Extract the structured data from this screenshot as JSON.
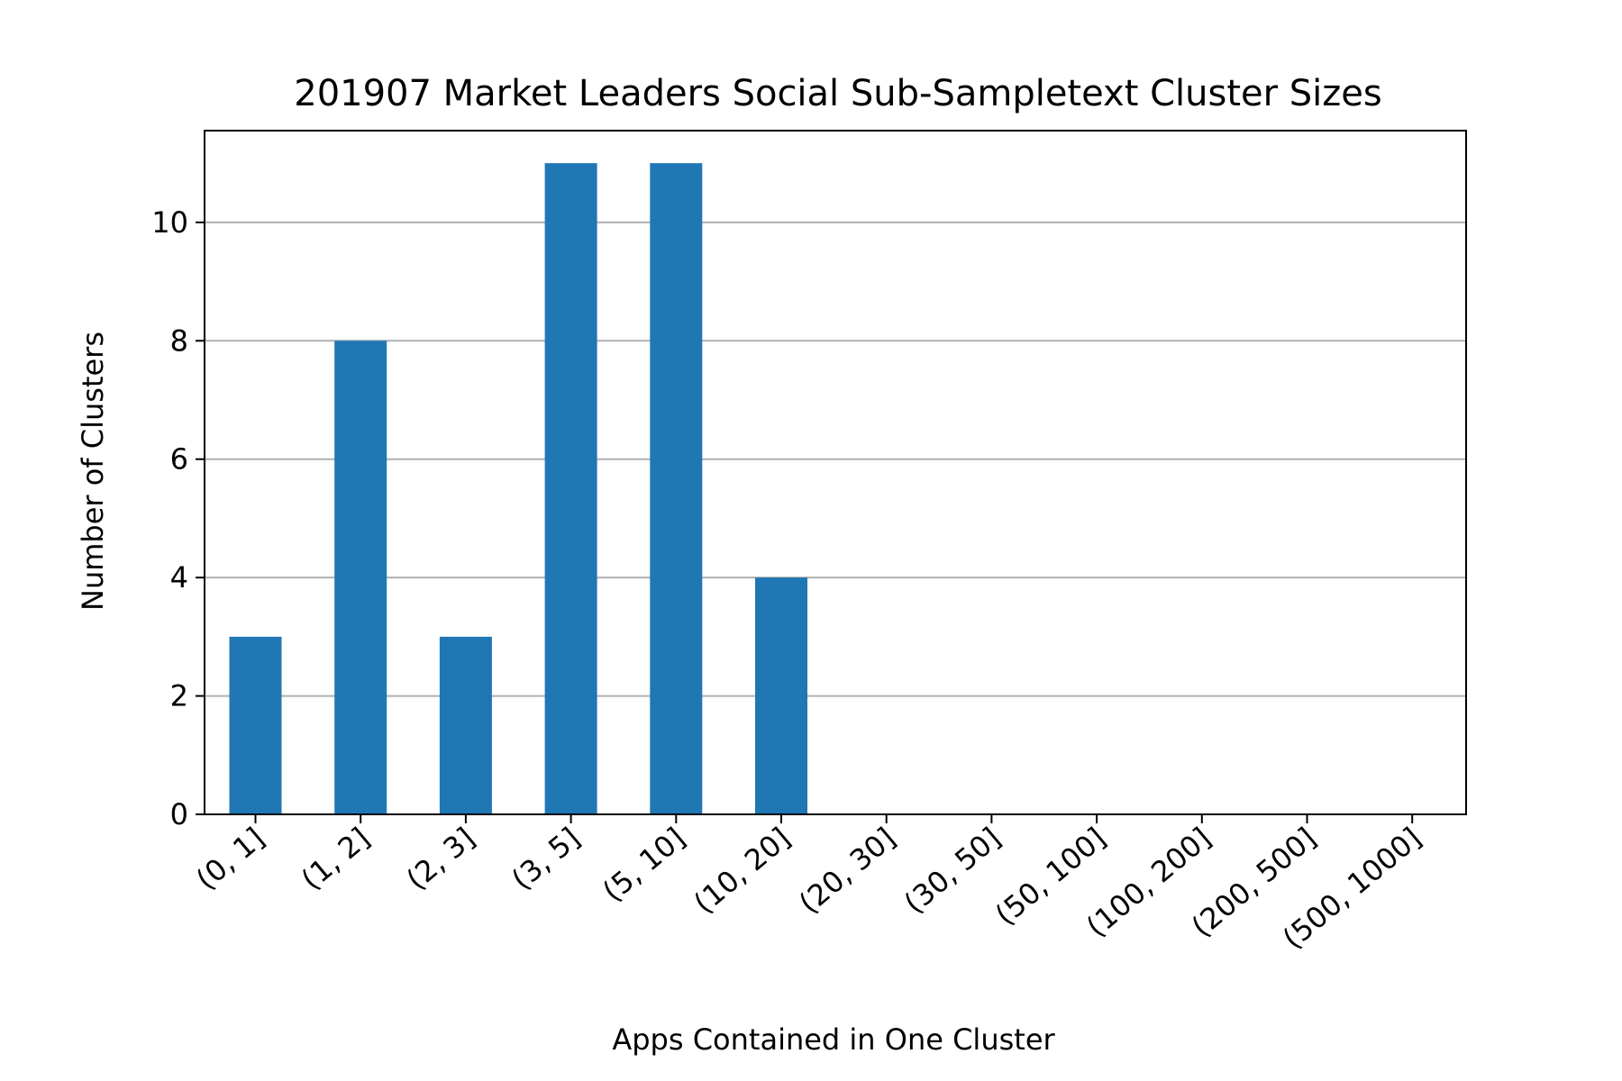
{
  "chart_data": {
    "type": "bar",
    "title": "201907 Market Leaders Social Sub-Sampletext Cluster Sizes",
    "xlabel": "Apps Contained in One Cluster",
    "ylabel": "Number of Clusters",
    "categories": [
      "(0, 1]",
      "(1, 2]",
      "(2, 3]",
      "(3, 5]",
      "(5, 10]",
      "(10, 20]",
      "(20, 30]",
      "(30, 50]",
      "(50, 100]",
      "(100, 200]",
      "(200, 500]",
      "(500, 1000]"
    ],
    "values": [
      3,
      8,
      3,
      11,
      11,
      4,
      0,
      0,
      0,
      0,
      0,
      0
    ],
    "ylim": [
      0,
      11.55
    ],
    "yticks": [
      0,
      2,
      4,
      6,
      8,
      10
    ],
    "grid": "y",
    "bar_color": "#1f77b4",
    "grid_color": "#b0b0b0"
  }
}
